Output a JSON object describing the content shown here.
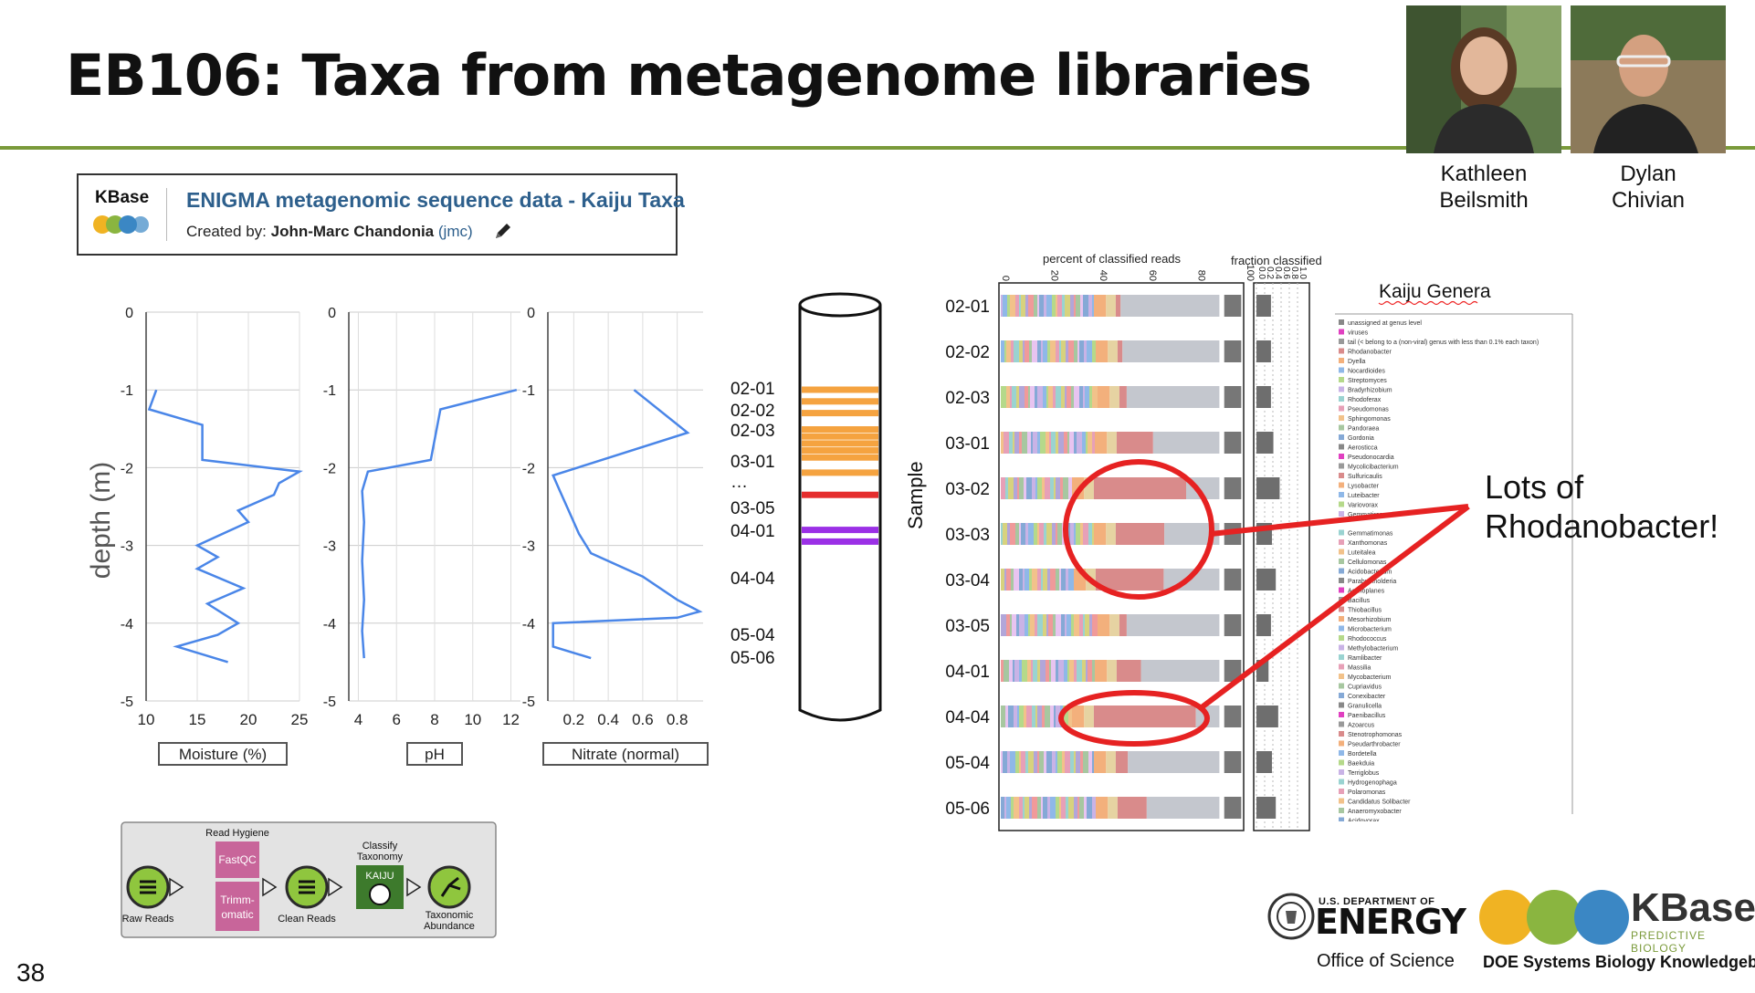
{
  "slide": {
    "title": "EB106: Taxa from metagenome libraries",
    "page_number": "38",
    "accent_color": "#7a9a3a"
  },
  "people": [
    {
      "first": "Kathleen",
      "last": "Beilsmith"
    },
    {
      "first": "Dylan",
      "last": "Chivian"
    }
  ],
  "kbase_card": {
    "logo": "KBase",
    "title": "ENIGMA metagenomic sequence data - Kaiju Taxa",
    "created_prefix": "Created by:",
    "author": "John-Marc Chandonia",
    "handle": "(jmc)",
    "icon": "pencil-icon"
  },
  "depth_profiles": {
    "ylabel": "depth (m)",
    "depth_ticks": [
      "0",
      "-1",
      "-2",
      "-3",
      "-4",
      "-5"
    ],
    "profiles": [
      {
        "name": "Moisture (%)",
        "xticks": [
          "10",
          "15",
          "20",
          "25"
        ],
        "xlim": [
          10,
          25
        ],
        "color": "#4a86e8",
        "points": [
          [
            11,
            -1.0
          ],
          [
            10.3,
            -1.25
          ],
          [
            15.5,
            -1.45
          ],
          [
            15.5,
            -1.9
          ],
          [
            25,
            -2.05
          ],
          [
            23,
            -2.2
          ],
          [
            22.5,
            -2.35
          ],
          [
            19,
            -2.55
          ],
          [
            20,
            -2.7
          ],
          [
            15,
            -3.0
          ],
          [
            17,
            -3.15
          ],
          [
            15,
            -3.3
          ],
          [
            19.5,
            -3.55
          ],
          [
            16,
            -3.75
          ],
          [
            19,
            -4.0
          ],
          [
            17,
            -4.15
          ],
          [
            13,
            -4.3
          ],
          [
            18,
            -4.5
          ]
        ]
      },
      {
        "name": "pH",
        "xticks": [
          "4",
          "6",
          "8",
          "10",
          "12"
        ],
        "xlim": [
          3.5,
          12.5
        ],
        "color": "#4a86e8",
        "points": [
          [
            12.3,
            -1.0
          ],
          [
            8.3,
            -1.25
          ],
          [
            7.8,
            -1.9
          ],
          [
            4.5,
            -2.05
          ],
          [
            4.2,
            -2.3
          ],
          [
            4.3,
            -2.7
          ],
          [
            4.2,
            -3.2
          ],
          [
            4.3,
            -3.7
          ],
          [
            4.2,
            -4.1
          ],
          [
            4.3,
            -4.45
          ]
        ]
      },
      {
        "name": "Nitrate (normal)",
        "xticks": [
          "0.2",
          "0.4",
          "0.6",
          "0.8"
        ],
        "xlim": [
          0.05,
          0.95
        ],
        "color": "#4a86e8",
        "points": [
          [
            0.55,
            -1.0
          ],
          [
            0.86,
            -1.55
          ],
          [
            0.08,
            -2.1
          ],
          [
            0.12,
            -2.3
          ],
          [
            0.17,
            -2.55
          ],
          [
            0.23,
            -2.85
          ],
          [
            0.3,
            -3.1
          ],
          [
            0.6,
            -3.4
          ],
          [
            0.8,
            -3.7
          ],
          [
            0.93,
            -3.85
          ],
          [
            0.8,
            -3.93
          ],
          [
            0.08,
            -4.0
          ],
          [
            0.08,
            -4.3
          ],
          [
            0.3,
            -4.45
          ]
        ]
      }
    ]
  },
  "core": {
    "labels": [
      "02-01",
      "02-02",
      "02-03",
      "03-01",
      "…",
      "03-05",
      "04-01",
      "04-04",
      "05-04",
      "05-06"
    ],
    "bands": [
      {
        "depth": 0,
        "color": "#f5a340"
      },
      {
        "depth": 1,
        "color": "#f5a340"
      },
      {
        "depth": 2,
        "color": "#f5a340"
      },
      {
        "depth": 3.4,
        "color": "#f5a340"
      },
      {
        "depth": 4.0,
        "color": "#f5a340"
      },
      {
        "depth": 4.6,
        "color": "#f5a340"
      },
      {
        "depth": 5.2,
        "color": "#f5a340"
      },
      {
        "depth": 5.8,
        "color": "#f5a340"
      },
      {
        "depth": 7.1,
        "color": "#f5a340"
      },
      {
        "depth": 9.0,
        "color": "#e52d2d"
      },
      {
        "depth": 12.0,
        "color": "#9b30e6"
      },
      {
        "depth": 13.0,
        "color": "#9b30e6"
      }
    ]
  },
  "taxa_chart": {
    "title": "percent of classified reads",
    "x_ticks": [
      "0",
      "20",
      "40",
      "60",
      "80",
      "100"
    ],
    "fraction_title": "fraction classified",
    "fraction_ticks": [
      "0.0",
      "0.2",
      "0.4",
      "0.6",
      "0.8",
      "1.0"
    ],
    "ylabel": "Sample",
    "legend_title": "Kaiju Genera",
    "samples": [
      "02-01",
      "02-02",
      "02-03",
      "03-01",
      "03-02",
      "03-03",
      "03-04",
      "03-05",
      "04-01",
      "04-04",
      "05-04",
      "05-06"
    ],
    "rhodanobacter_pct": [
      2,
      2,
      3,
      15,
      38,
      20,
      28,
      3,
      10,
      42,
      5,
      12
    ],
    "fraction_classified": [
      0.3,
      0.3,
      0.3,
      0.35,
      0.48,
      0.32,
      0.4,
      0.3,
      0.25,
      0.45,
      0.32,
      0.4
    ],
    "genera": [
      "unassigned at genus level",
      "viruses",
      "tail (< belong to a (non-viral) genus with less than 0.1% each taxon)",
      "Rhodanobacter",
      "Dyella",
      "Nocardioides",
      "Streptomyces",
      "Bradyrhizobium",
      "Rhodoferax",
      "Pseudomonas",
      "Sphingomonas",
      "Pandoraea",
      "Gordonia",
      "Aerosticca",
      "Pseudonocardia",
      "Mycolicibacterium",
      "Sulfuricaulis",
      "Lysobacter",
      "Luteibacter",
      "Variovorax",
      "Gemmatirosa",
      "Gemmatimonas",
      "Xanthomonas",
      "Luteitalea",
      "Cellulomonas",
      "Acidobacterium",
      "Paraburkholderia",
      "Actinoplanes",
      "Bacillus",
      "Thiobacillus",
      "Mesorhizobium",
      "Microbacterium",
      "Rhodococcus",
      "Methylobacterium",
      "Ramlibacter",
      "Massilia",
      "Mycobacterium",
      "Cupriavidus",
      "Conexibacter",
      "Granulicella",
      "Paenibacillus",
      "Azoarcus",
      "Stenotrophomonas",
      "Pseudarthrobacter",
      "Bordetella",
      "Baekduia",
      "Terriglobus",
      "Hydrogenophaga",
      "Polaromonas",
      "Candidatus Solibacter",
      "Anaeromyxobacter",
      "Acidovorax"
    ],
    "annotation": [
      "Lots of",
      "Rhodanobacter!"
    ]
  },
  "pipeline": {
    "steps": [
      {
        "label": "Raw Reads"
      },
      {
        "label": "Read Hygiene",
        "tools": [
          "FastQC",
          "Trimm-omatic"
        ]
      },
      {
        "label": "Clean Reads"
      },
      {
        "label": "Classify Taxonomy",
        "tools": [
          "KAIJU"
        ]
      },
      {
        "label": "Taxonomic Abundance"
      }
    ]
  },
  "footer": {
    "doe_line1": "U.S. DEPARTMENT OF",
    "doe_line2": "ENERGY",
    "doe_line3": "Office of Science",
    "kbase_name": "KBase",
    "kbase_tag": "PREDICTIVE BIOLOGY",
    "kbase_full": "DOE Systems Biology Knowledgebase"
  }
}
